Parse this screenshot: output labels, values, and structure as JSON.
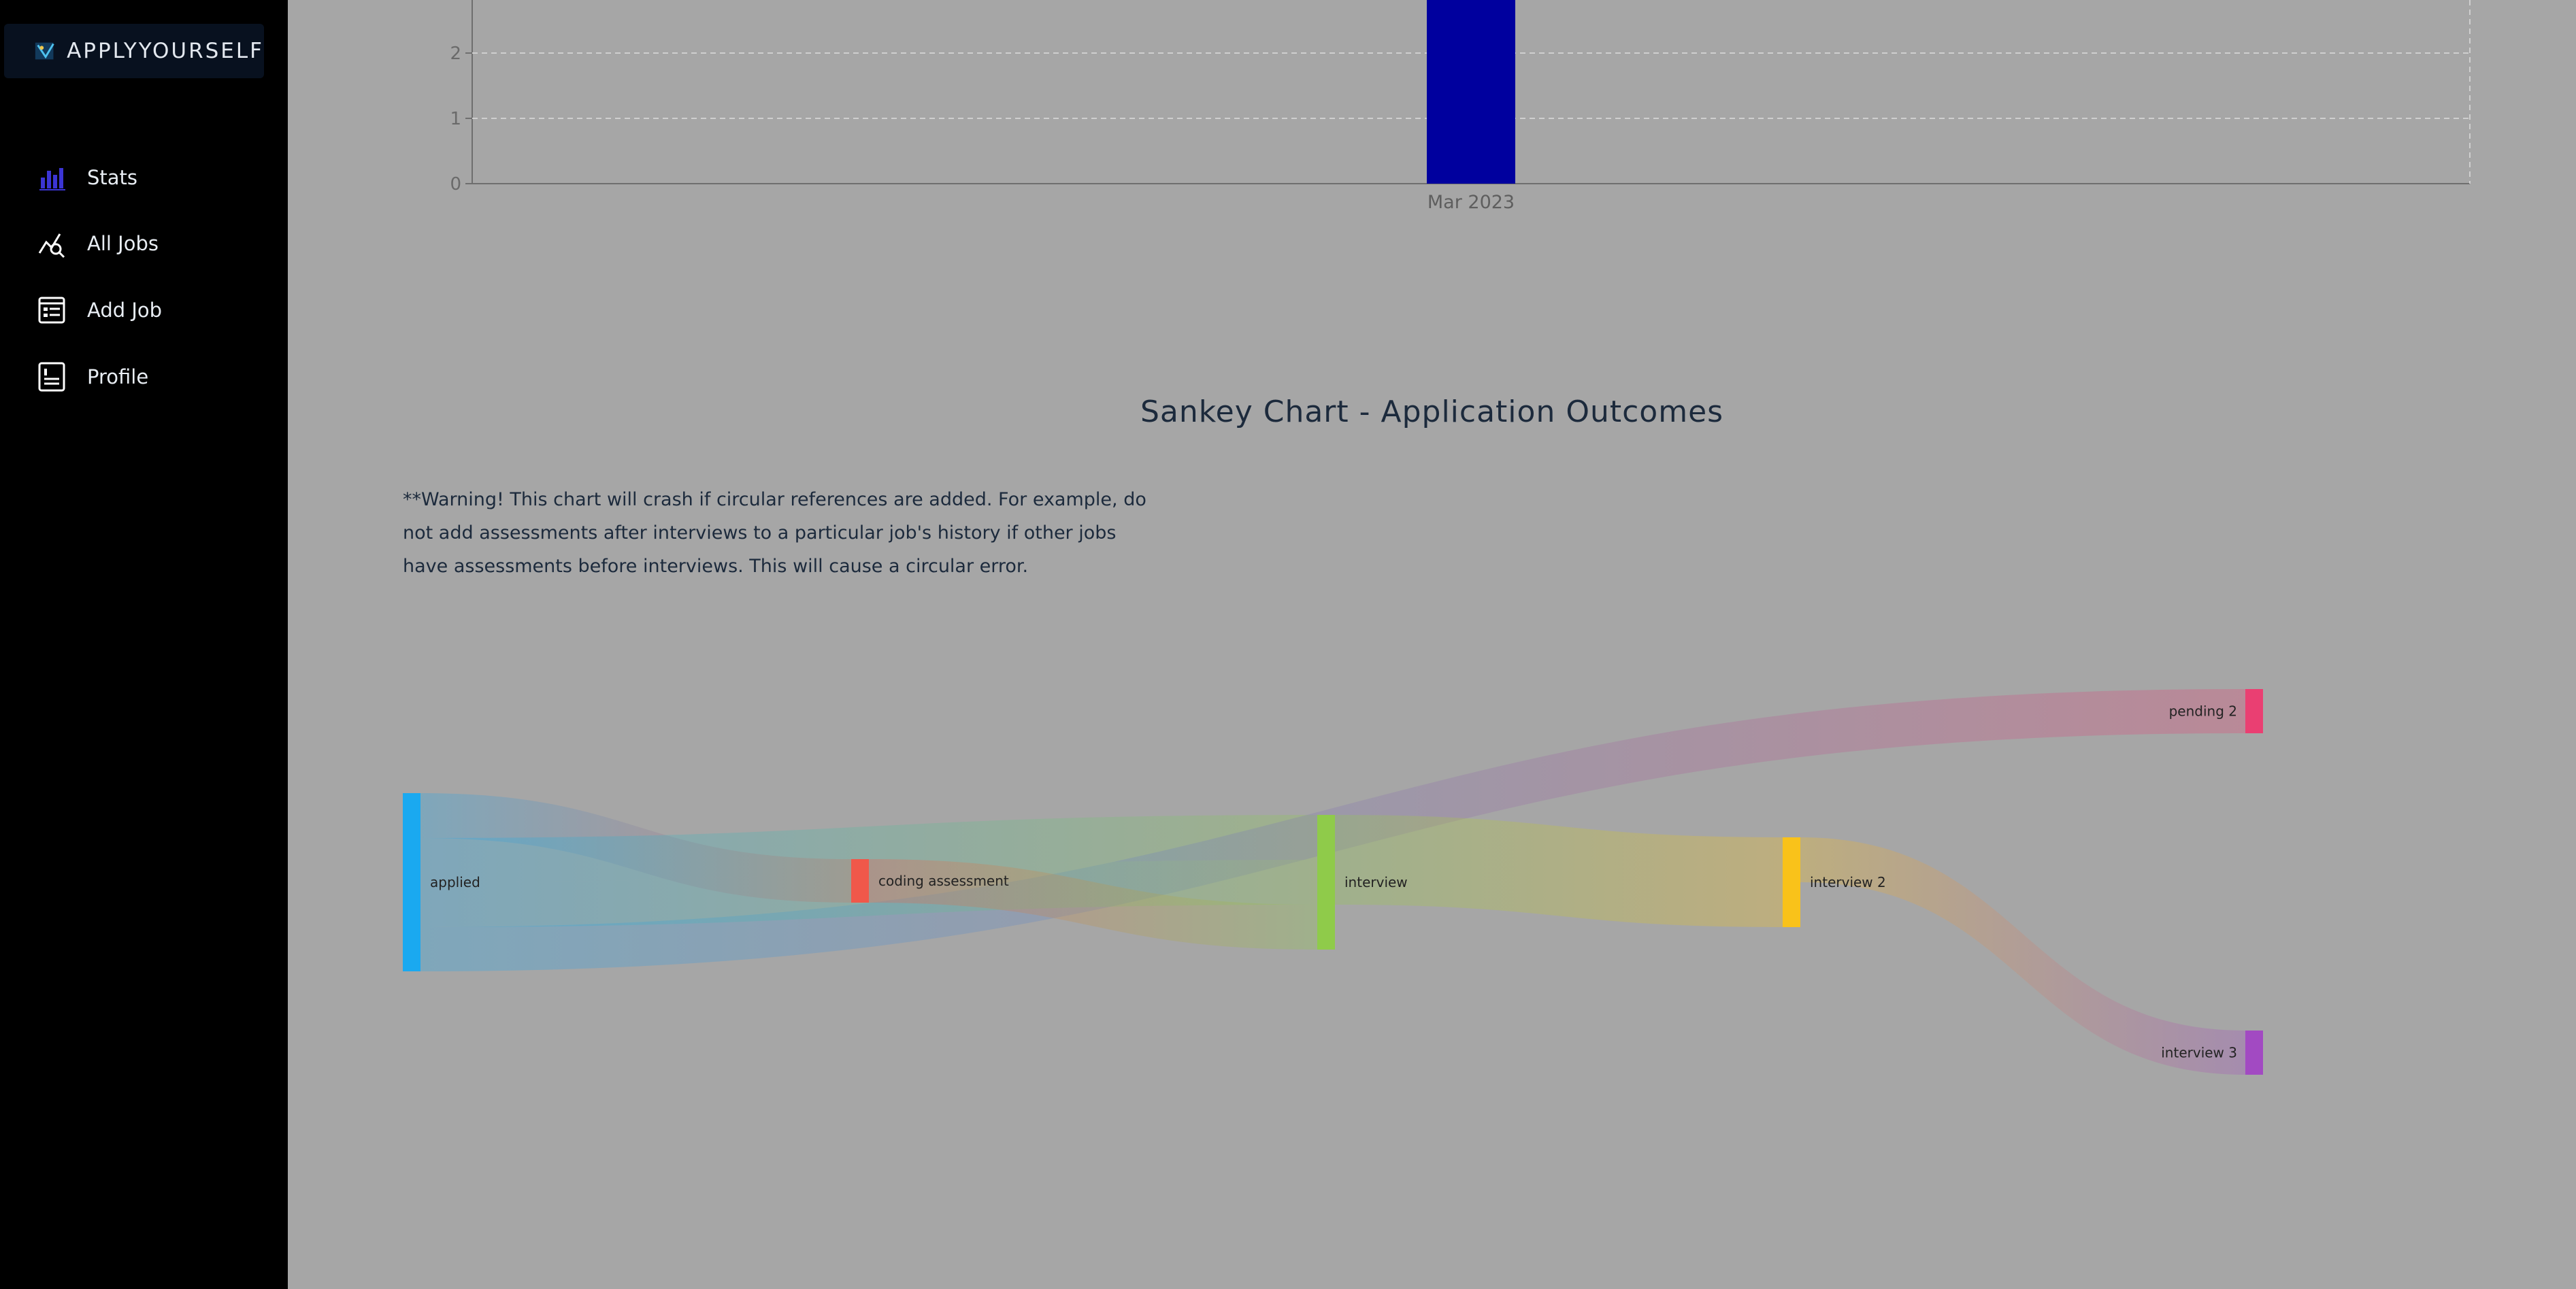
{
  "app": {
    "title": "APPLYYOURSELF"
  },
  "sidebar": {
    "items": [
      {
        "label": "Stats",
        "icon": "bar-chart-icon",
        "active": true
      },
      {
        "label": "All Jobs",
        "icon": "search-chart-icon"
      },
      {
        "label": "Add Job",
        "icon": "form-icon"
      },
      {
        "label": "Profile",
        "icon": "profile-icon"
      }
    ]
  },
  "bar_chart": {
    "y_ticks": [
      "0",
      "1",
      "2"
    ],
    "x_ticks": [
      "Mar 2023"
    ]
  },
  "sankey": {
    "title": "Sankey Chart - Application Outcomes",
    "warning": "**Warning! This chart will crash if circular references are added. For example, do not add assessments after interviews to a particular job's history if other jobs have assessments before interviews. This will cause a circular error."
  },
  "colors": {
    "background": "#a6a6a6",
    "sidebar": "#000000",
    "bar": "#00009e",
    "accent": "#3b35d4"
  },
  "chart_data": [
    {
      "type": "bar",
      "categories": [
        "Mar 2023"
      ],
      "values": [
        3
      ],
      "ylim": [
        0,
        3
      ],
      "y_ticks": [
        0,
        1,
        2
      ],
      "grid": true
    },
    {
      "type": "sankey",
      "title": "Sankey Chart - Application Outcomes",
      "nodes": [
        {
          "name": "applied",
          "color": "#1aa9f0"
        },
        {
          "name": "coding assessment",
          "color": "#f0584a"
        },
        {
          "name": "interview",
          "color": "#8fcb4a"
        },
        {
          "name": "interview 2",
          "color": "#f9c21a"
        },
        {
          "name": "pending 2",
          "color": "#ea3f72"
        },
        {
          "name": "interview 3",
          "color": "#a24ac2"
        }
      ],
      "links": [
        {
          "source": "applied",
          "target": "coding assessment",
          "value": 1
        },
        {
          "source": "applied",
          "target": "interview",
          "value": 1
        },
        {
          "source": "applied",
          "target": "pending 2",
          "value": 1
        },
        {
          "source": "applied",
          "target": "interview",
          "value": 1
        },
        {
          "source": "coding assessment",
          "target": "interview",
          "value": 1
        },
        {
          "source": "interview",
          "target": "interview 2",
          "value": 2
        },
        {
          "source": "interview 2",
          "target": "interview 3",
          "value": 1
        }
      ]
    }
  ]
}
